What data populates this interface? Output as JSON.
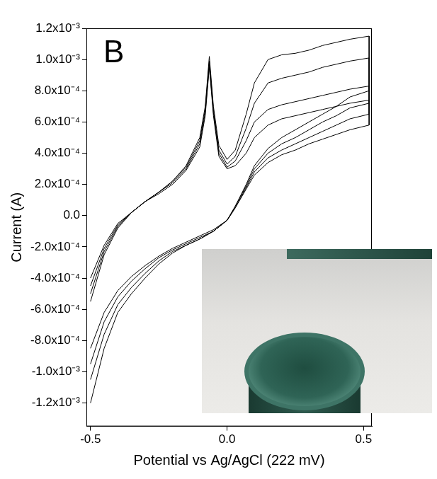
{
  "chart_data": {
    "type": "line",
    "annotations": [
      "B"
    ],
    "x_label": "Potential vs Ag/AgCl (222 mV)",
    "y_label": "Current (A)",
    "xlim": [
      -0.515,
      0.53
    ],
    "xticks": [
      -0.5,
      {
        "value": 0,
        "label": "0.0"
      },
      0.5
    ],
    "ylim": [
      -0.00135,
      0.0012
    ],
    "yticks": [
      {
        "value": -0.0012,
        "label": "-1.2x10⁻³"
      },
      {
        "value": -0.001,
        "label": "-1.0x10⁻³"
      },
      {
        "value": -0.0008,
        "label": "-8.0x10⁻⁴"
      },
      {
        "value": -0.0006,
        "label": "-6.0x10⁻⁴"
      },
      {
        "value": -0.0004,
        "label": "-4.0x10⁻⁴"
      },
      {
        "value": -0.0002,
        "label": "-2.0x10⁻⁴"
      },
      {
        "value": 0,
        "label": "0.0"
      },
      {
        "value": 0.0002,
        "label": "2.0x10⁻⁴"
      },
      {
        "value": 0.0004,
        "label": "4.0x10⁻⁴"
      },
      {
        "value": 0.0006,
        "label": "6.0x10⁻⁴"
      },
      {
        "value": 0.0008,
        "label": "8.0x10⁻⁴"
      },
      {
        "value": 0.001,
        "label": "1.0x10⁻³"
      },
      {
        "value": 0.0012,
        "label": "1.2x10⁻³"
      }
    ],
    "grid": false,
    "marker": "none",
    "line_style": "solid",
    "series": [
      {
        "color": "#000000",
        "x": [
          -0.5,
          -0.45,
          -0.4,
          -0.35,
          -0.3,
          -0.25,
          -0.2,
          -0.15,
          -0.1,
          -0.08,
          -0.065,
          -0.05,
          -0.03,
          0,
          0.03,
          0.07,
          0.1,
          0.15,
          0.2,
          0.25,
          0.3,
          0.35,
          0.4,
          0.45,
          0.52,
          0.52,
          0.45,
          0.4,
          0.35,
          0.3,
          0.25,
          0.2,
          0.15,
          0.1,
          0.07,
          0.03,
          0,
          -0.05,
          -0.1,
          -0.15,
          -0.2,
          -0.25,
          -0.3,
          -0.35,
          -0.4,
          -0.45,
          -0.5
        ],
        "values": [
          -0.00055,
          -0.00025,
          -8e-05,
          2e-05,
          9e-05,
          0.00015,
          0.00022,
          0.00032,
          0.0005,
          0.0007,
          0.00102,
          0.0007,
          0.00045,
          0.00036,
          0.00042,
          0.00065,
          0.00085,
          0.001,
          0.00103,
          0.00104,
          0.00106,
          0.00109,
          0.00111,
          0.00113,
          0.00115,
          0.0008,
          0.00076,
          0.0007,
          0.00065,
          0.0006,
          0.00055,
          0.0005,
          0.00043,
          0.00032,
          0.0002,
          6e-05,
          -3e-05,
          -0.0001,
          -0.00015,
          -0.00019,
          -0.00024,
          -0.00031,
          -0.0004,
          -0.0005,
          -0.00062,
          -0.00085,
          -0.0012
        ]
      },
      {
        "color": "#000000",
        "x": [
          -0.5,
          -0.45,
          -0.4,
          -0.35,
          -0.3,
          -0.25,
          -0.2,
          -0.15,
          -0.1,
          -0.08,
          -0.065,
          -0.05,
          -0.03,
          0,
          0.03,
          0.07,
          0.1,
          0.15,
          0.2,
          0.25,
          0.3,
          0.35,
          0.4,
          0.45,
          0.52,
          0.52,
          0.45,
          0.4,
          0.35,
          0.3,
          0.25,
          0.2,
          0.15,
          0.1,
          0.07,
          0.03,
          0,
          -0.05,
          -0.1,
          -0.15,
          -0.2,
          -0.25,
          -0.3,
          -0.35,
          -0.4,
          -0.45,
          -0.5
        ],
        "values": [
          -0.0005,
          -0.00023,
          -7e-05,
          2e-05,
          9e-05,
          0.00015,
          0.00022,
          0.00031,
          0.00048,
          0.00068,
          0.00099,
          0.00068,
          0.00042,
          0.00033,
          0.00038,
          0.00056,
          0.00072,
          0.00085,
          0.00088,
          0.0009,
          0.00092,
          0.00095,
          0.00097,
          0.00099,
          0.00101,
          0.00072,
          0.00069,
          0.00064,
          0.0006,
          0.00055,
          0.0005,
          0.00046,
          0.0004,
          0.0003,
          0.00019,
          6e-05,
          -3e-05,
          -0.0001,
          -0.00015,
          -0.00019,
          -0.00023,
          -0.00029,
          -0.00037,
          -0.00046,
          -0.00057,
          -0.00076,
          -0.00105
        ]
      },
      {
        "color": "#000000",
        "x": [
          -0.5,
          -0.45,
          -0.4,
          -0.35,
          -0.3,
          -0.25,
          -0.2,
          -0.15,
          -0.1,
          -0.08,
          -0.065,
          -0.05,
          -0.03,
          0,
          0.03,
          0.07,
          0.1,
          0.15,
          0.2,
          0.25,
          0.3,
          0.35,
          0.4,
          0.45,
          0.52,
          0.52,
          0.45,
          0.4,
          0.35,
          0.3,
          0.25,
          0.2,
          0.15,
          0.1,
          0.07,
          0.03,
          0,
          -0.05,
          -0.1,
          -0.15,
          -0.2,
          -0.25,
          -0.3,
          -0.35,
          -0.4,
          -0.45,
          -0.5
        ],
        "values": [
          -0.00045,
          -0.00021,
          -6e-05,
          2e-05,
          9e-05,
          0.00015,
          0.00021,
          0.0003,
          0.00046,
          0.00066,
          0.00097,
          0.00066,
          0.0004,
          0.00031,
          0.00035,
          0.00048,
          0.0006,
          0.00068,
          0.00071,
          0.00073,
          0.00075,
          0.00077,
          0.00079,
          0.00081,
          0.00083,
          0.00065,
          0.00062,
          0.00058,
          0.00054,
          0.0005,
          0.00046,
          0.00042,
          0.00037,
          0.00028,
          0.00018,
          5e-05,
          -3e-05,
          -0.0001,
          -0.00014,
          -0.00018,
          -0.00022,
          -0.00027,
          -0.00034,
          -0.00042,
          -0.00052,
          -0.00068,
          -0.00095
        ]
      },
      {
        "color": "#000000",
        "x": [
          -0.5,
          -0.45,
          -0.4,
          -0.35,
          -0.3,
          -0.25,
          -0.2,
          -0.15,
          -0.1,
          -0.08,
          -0.065,
          -0.05,
          -0.03,
          0,
          0.03,
          0.07,
          0.1,
          0.15,
          0.2,
          0.25,
          0.3,
          0.35,
          0.4,
          0.45,
          0.52,
          0.52,
          0.45,
          0.4,
          0.35,
          0.3,
          0.25,
          0.2,
          0.15,
          0.1,
          0.07,
          0.03,
          0,
          -0.05,
          -0.1,
          -0.15,
          -0.2,
          -0.25,
          -0.3,
          -0.35,
          -0.4,
          -0.45,
          -0.5
        ],
        "values": [
          -0.0004,
          -0.00019,
          -5e-05,
          2e-05,
          9e-05,
          0.00014,
          0.0002,
          0.00029,
          0.00044,
          0.00064,
          0.00095,
          0.00064,
          0.00038,
          0.0003,
          0.00032,
          0.0004,
          0.0005,
          0.00058,
          0.00062,
          0.00064,
          0.00066,
          0.00068,
          0.0007,
          0.00072,
          0.00074,
          0.00058,
          0.00055,
          0.00052,
          0.00049,
          0.00046,
          0.00042,
          0.00039,
          0.00034,
          0.00026,
          0.00017,
          5e-05,
          -3e-05,
          -9e-05,
          -0.00013,
          -0.00017,
          -0.00021,
          -0.00026,
          -0.00032,
          -0.00039,
          -0.00048,
          -0.00062,
          -0.00085
        ]
      }
    ]
  }
}
